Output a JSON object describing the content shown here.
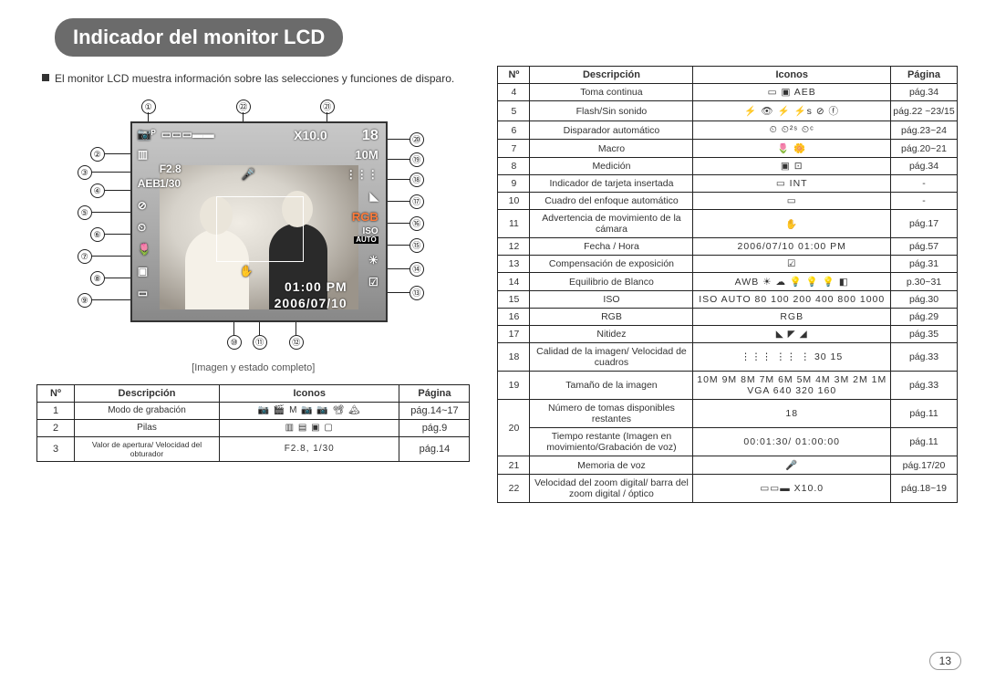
{
  "page_number": "13",
  "title": "Indicador del monitor LCD",
  "intro": "El monitor LCD muestra información sobre las selecciones y funciones de disparo.",
  "lcd": {
    "zoom_value": "X10.0",
    "shots": "18",
    "size_badge": "10M",
    "aperture": "F2.8",
    "shutter": "1/30",
    "rgb": "RGB",
    "iso_mode": "ISO",
    "auto": "AUTO",
    "time": "01:00 PM",
    "date": "2006/07/10"
  },
  "caption": "[Imagen y estado completo]",
  "table_headers": {
    "num": "Nº",
    "desc": "Descripción",
    "icons": "Iconos",
    "page": "Página"
  },
  "left_rows": [
    {
      "n": "1",
      "d": "Modo de grabación",
      "i": "📷 🎬 M 📷 📷 📽 🏔",
      "p": "pág.14~17"
    },
    {
      "n": "2",
      "d": "Pilas",
      "i": "▥ ▤ ▣ ▢",
      "p": "pág.9"
    },
    {
      "n": "3",
      "d": "Valor de apertura/ Velocidad del obturador",
      "i": "F2.8, 1/30",
      "p": "pág.14"
    }
  ],
  "right_rows": [
    {
      "n": "4",
      "d": "Toma continua",
      "i": "▭  ▣  AEB",
      "p": "pág.34"
    },
    {
      "n": "5",
      "d": "Flash/Sin sonido",
      "i": "⚡ 👁 ⚡ ⚡s ⊘ ⓕ",
      "p": "pág.22 ~23/15"
    },
    {
      "n": "6",
      "d": "Disparador automático",
      "i": "⏲  ⏲²ˢ  ⏲ᶜ",
      "p": "pág.23~24"
    },
    {
      "n": "7",
      "d": "Macro",
      "i": "🌷  🌼",
      "p": "pág.20~21"
    },
    {
      "n": "8",
      "d": "Medición",
      "i": "▣  ⊡",
      "p": "pág.34"
    },
    {
      "n": "9",
      "d": "Indicador de tarjeta insertada",
      "i": "▭  INT",
      "p": "-"
    },
    {
      "n": "10",
      "d": "Cuadro del enfoque automático",
      "i": "▭",
      "p": "-"
    },
    {
      "n": "11",
      "d": "Advertencia de movimiento de la cámara",
      "i": "✋",
      "p": "pág.17"
    },
    {
      "n": "12",
      "d": "Fecha / Hora",
      "i": "2006/07/10  01:00 PM",
      "p": "pág.57"
    },
    {
      "n": "13",
      "d": "Compensación de exposición",
      "i": "☑",
      "p": "pág.31"
    },
    {
      "n": "14",
      "d": "Equilibrio de Blanco",
      "i": "AWB ☀ ☁ 💡 💡 💡 ◧",
      "p": "p.30~31"
    },
    {
      "n": "15",
      "d": "ISO",
      "i": "ISO AUTO 80 100 200 400 800 1000",
      "p": "pág.30"
    },
    {
      "n": "16",
      "d": "RGB",
      "i": "RGB",
      "p": "pág.29"
    },
    {
      "n": "17",
      "d": "Nitidez",
      "i": "◣ ◤ ◢",
      "p": "pág.35"
    },
    {
      "n": "18",
      "d": "Calidad de la imagen/ Velocidad de cuadros",
      "i": "⋮⋮⋮ ⋮⋮ ⋮ 30 15",
      "p": "pág.33"
    },
    {
      "n": "19",
      "d": "Tamaño de la imagen",
      "i": "10M 9M 8M 7M 6M 5M 4M 3M 2M 1M VGA 640 320 160",
      "p": "pág.33"
    },
    {
      "n": "20a",
      "d": "Número de tomas disponibles restantes",
      "i": "18",
      "p": "pág.11"
    },
    {
      "n": "20b",
      "d": "Tiempo restante (Imagen en movimiento/Grabación de voz)",
      "i": "00:01:30/ 01:00:00",
      "p": "pág.11"
    },
    {
      "n": "21",
      "d": "Memoria de voz",
      "i": "🎤",
      "p": "pág.17/20"
    },
    {
      "n": "22",
      "d": "Velocidad del zoom digital/ barra del zoom digital / óptico",
      "i": "▭▭▬ X10.0",
      "p": "pág.18~19"
    }
  ],
  "callouts": {
    "left": [
      "②",
      "③",
      "④",
      "⑤",
      "⑥",
      "⑦",
      "⑧",
      "⑨"
    ],
    "top": [
      "①",
      "㉒",
      "㉑"
    ],
    "right": [
      "⑳",
      "⑲",
      "⑱",
      "⑰",
      "⑯",
      "⑮",
      "⑭",
      "⑬"
    ],
    "bottom": [
      "⑩",
      "⑪",
      "⑫"
    ]
  }
}
